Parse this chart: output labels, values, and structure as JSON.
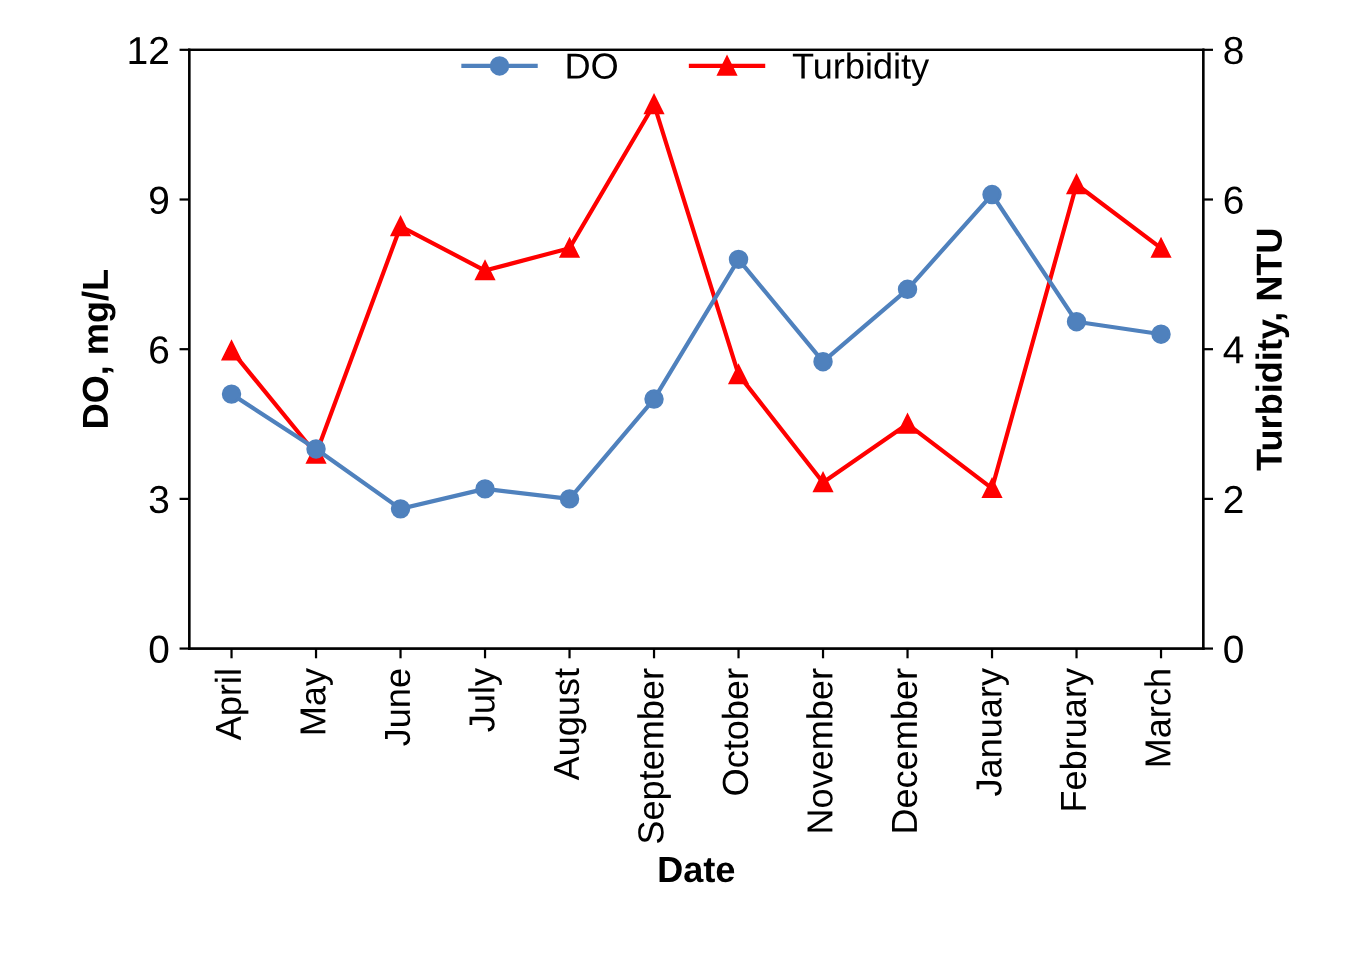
{
  "chart_data": {
    "type": "line",
    "xlabel": "Date",
    "ylabel": "DO, mg/L",
    "y2label": "Turbidity, NTU",
    "categories": [
      "April",
      "May",
      "June",
      "July",
      "August",
      "September",
      "October",
      "November",
      "December",
      "January",
      "February",
      "March"
    ],
    "series": [
      {
        "name": "DO",
        "color": "#4f81bd",
        "marker": "circle",
        "values": [
          5.1,
          4.0,
          2.8,
          3.2,
          3.0,
          5.0,
          7.8,
          5.75,
          7.2,
          9.1,
          6.55,
          6.3
        ]
      },
      {
        "name": "Turbidity",
        "color": "#ff0000",
        "marker": "triangle",
        "axis": "y2",
        "values": [
          3.98,
          2.6,
          5.64,
          5.05,
          5.35,
          7.27,
          3.66,
          2.22,
          3.0,
          2.14,
          6.2,
          5.35
        ]
      }
    ],
    "ylim": [
      0,
      12
    ],
    "yticks": [
      0,
      3,
      6,
      9,
      12
    ],
    "y2lim": [
      0,
      8
    ],
    "y2ticks": [
      0,
      2,
      4,
      6,
      8
    ],
    "legend": "top",
    "grid": false,
    "line_style": "solid"
  }
}
